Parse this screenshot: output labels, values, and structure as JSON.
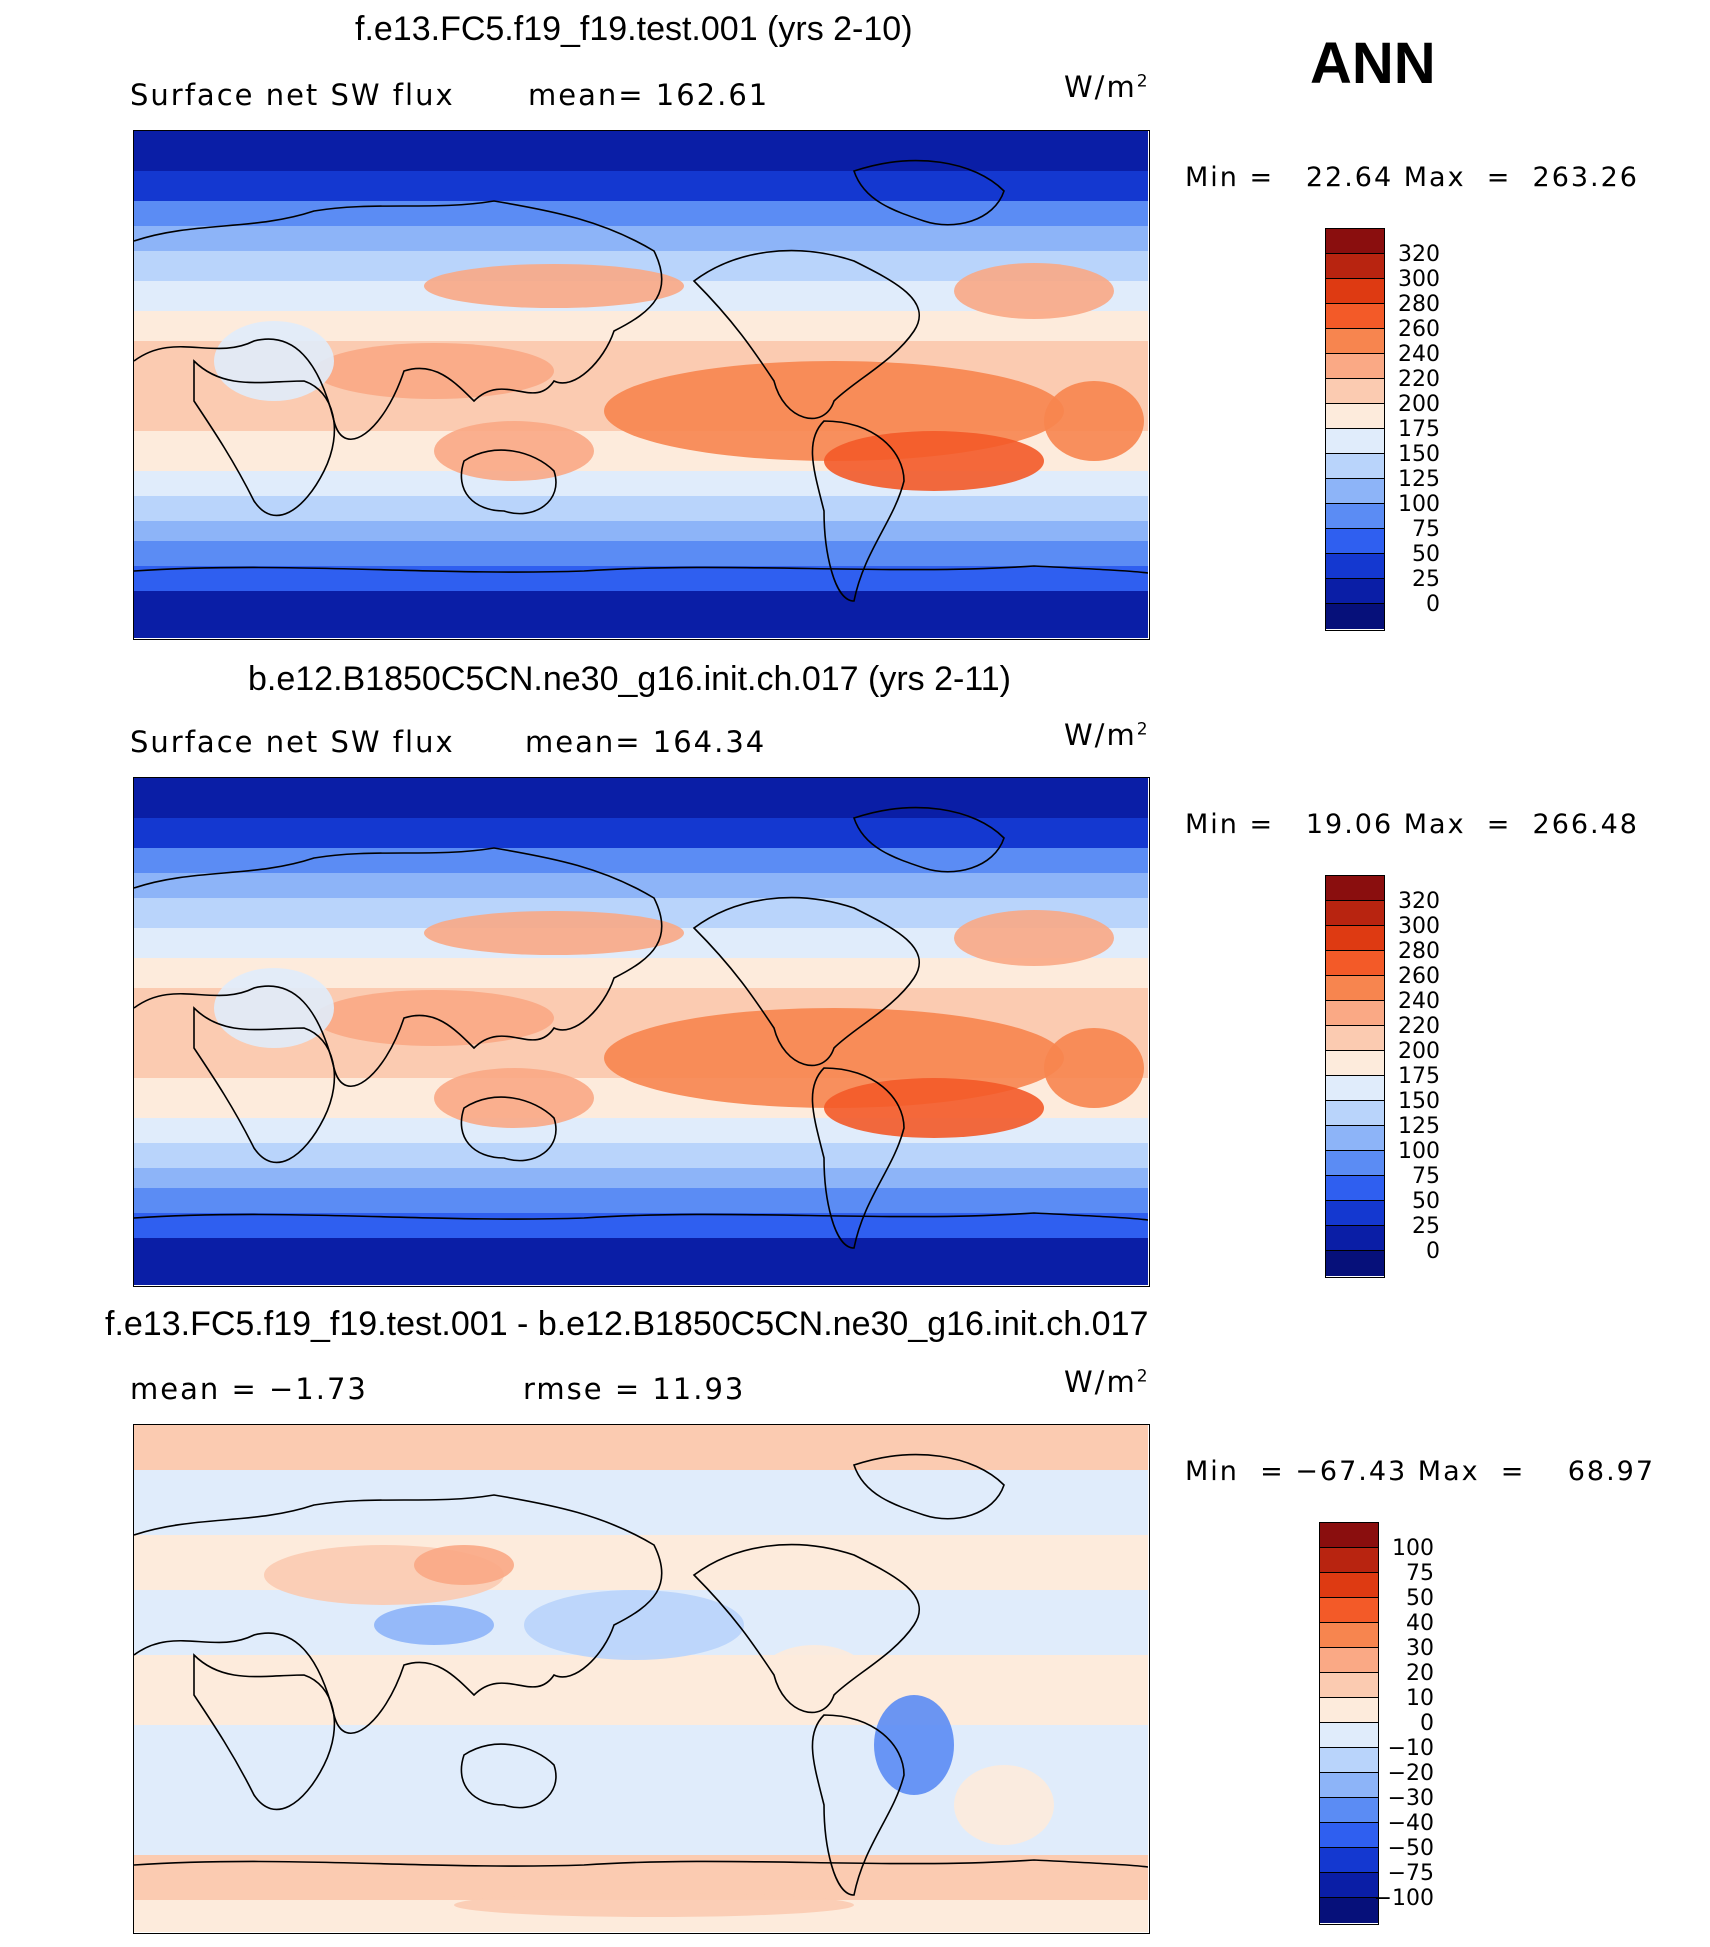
{
  "season": "ANN",
  "unit_base": "W/m",
  "unit_exp": "2",
  "panels": [
    {
      "title": "f.e13.FC5.f19_f19.test.001 (yrs 2-10)",
      "subtitle_left": "Surface net SW flux",
      "subtitle_right": "mean=  162.61",
      "minmax": "Min =   22.64 Max  =  263.26",
      "levels": [
        "320",
        "300",
        "280",
        "260",
        "240",
        "220",
        "200",
        "175",
        "150",
        "125",
        "100",
        "75",
        "50",
        "25",
        "0"
      ]
    },
    {
      "title": "b.e12.B1850C5CN.ne30_g16.init.ch.017 (yrs 2-11)",
      "subtitle_left": "Surface net SW flux",
      "subtitle_right": "mean=  164.34",
      "minmax": "Min =   19.06 Max  =  266.48",
      "levels": [
        "320",
        "300",
        "280",
        "260",
        "240",
        "220",
        "200",
        "175",
        "150",
        "125",
        "100",
        "75",
        "50",
        "25",
        "0"
      ]
    },
    {
      "title": "f.e13.FC5.f19_f19.test.001 - b.e12.B1850C5CN.ne30_g16.init.ch.017",
      "subtitle_left": "mean  =    −1.73",
      "subtitle_right": "rmse  =     11.93",
      "minmax": "Min  = −67.43 Max  =    68.97",
      "levels": [
        "100",
        "75",
        "50",
        "40",
        "30",
        "20",
        "10",
        "0",
        "−10",
        "−20",
        "−30",
        "−40",
        "−50",
        "−75",
        "−100"
      ]
    }
  ],
  "colors": {
    "scale": [
      "#8a0e0e",
      "#b82410",
      "#de3a12",
      "#f35a28",
      "#f7854f",
      "#faa985",
      "#fbcbb1",
      "#fdebdc",
      "#e0ecfb",
      "#b9d4fb",
      "#8db4f8",
      "#5b8cf4",
      "#2f5ff0",
      "#1438d0",
      "#0a1ea6",
      "#06107a"
    ]
  },
  "icons": {
    "map": "world-map-icon"
  }
}
